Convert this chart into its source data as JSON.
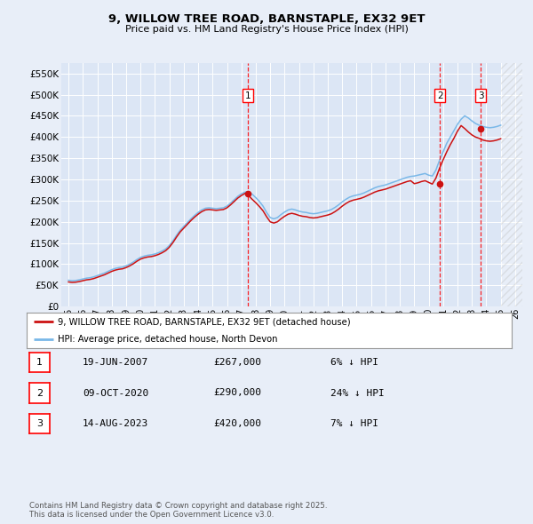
{
  "title": "9, WILLOW TREE ROAD, BARNSTAPLE, EX32 9ET",
  "subtitle": "Price paid vs. HM Land Registry's House Price Index (HPI)",
  "background_color": "#e8eef8",
  "plot_bg_color": "#dce6f5",
  "hpi_color": "#7ab8e8",
  "price_color": "#cc1111",
  "ylim": [
    0,
    575000
  ],
  "yticks": [
    0,
    50000,
    100000,
    150000,
    200000,
    250000,
    300000,
    350000,
    400000,
    450000,
    500000,
    550000
  ],
  "xlim_start": 1994.5,
  "xlim_end": 2026.5,
  "purchase_dates": [
    2007.47,
    2020.77,
    2023.62
  ],
  "purchase_prices": [
    267000,
    290000,
    420000
  ],
  "purchase_labels": [
    "1",
    "2",
    "3"
  ],
  "legend_label_price": "9, WILLOW TREE ROAD, BARNSTAPLE, EX32 9ET (detached house)",
  "legend_label_hpi": "HPI: Average price, detached house, North Devon",
  "table_entries": [
    {
      "label": "1",
      "date": "19-JUN-2007",
      "price": "£267,000",
      "info": "6% ↓ HPI"
    },
    {
      "label": "2",
      "date": "09-OCT-2020",
      "price": "£290,000",
      "info": "24% ↓ HPI"
    },
    {
      "label": "3",
      "date": "14-AUG-2023",
      "price": "£420,000",
      "info": "7% ↓ HPI"
    }
  ],
  "footer": "Contains HM Land Registry data © Crown copyright and database right 2025.\nThis data is licensed under the Open Government Licence v3.0.",
  "hpi_data": {
    "years": [
      1995.0,
      1995.25,
      1995.5,
      1995.75,
      1996.0,
      1996.25,
      1996.5,
      1996.75,
      1997.0,
      1997.25,
      1997.5,
      1997.75,
      1998.0,
      1998.25,
      1998.5,
      1998.75,
      1999.0,
      1999.25,
      1999.5,
      1999.75,
      2000.0,
      2000.25,
      2000.5,
      2000.75,
      2001.0,
      2001.25,
      2001.5,
      2001.75,
      2002.0,
      2002.25,
      2002.5,
      2002.75,
      2003.0,
      2003.25,
      2003.5,
      2003.75,
      2004.0,
      2004.25,
      2004.5,
      2004.75,
      2005.0,
      2005.25,
      2005.5,
      2005.75,
      2006.0,
      2006.25,
      2006.5,
      2006.75,
      2007.0,
      2007.25,
      2007.5,
      2007.75,
      2008.0,
      2008.25,
      2008.5,
      2008.75,
      2009.0,
      2009.25,
      2009.5,
      2009.75,
      2010.0,
      2010.25,
      2010.5,
      2010.75,
      2011.0,
      2011.25,
      2011.5,
      2011.75,
      2012.0,
      2012.25,
      2012.5,
      2012.75,
      2013.0,
      2013.25,
      2013.5,
      2013.75,
      2014.0,
      2014.25,
      2014.5,
      2014.75,
      2015.0,
      2015.25,
      2015.5,
      2015.75,
      2016.0,
      2016.25,
      2016.5,
      2016.75,
      2017.0,
      2017.25,
      2017.5,
      2017.75,
      2018.0,
      2018.25,
      2018.5,
      2018.75,
      2019.0,
      2019.25,
      2019.5,
      2019.75,
      2020.0,
      2020.25,
      2020.5,
      2020.75,
      2021.0,
      2021.25,
      2021.5,
      2021.75,
      2022.0,
      2022.25,
      2022.5,
      2022.75,
      2023.0,
      2023.25,
      2023.5,
      2023.75,
      2024.0,
      2024.25,
      2024.5,
      2024.75,
      2025.0
    ],
    "values": [
      62000,
      61000,
      61500,
      63000,
      65000,
      67000,
      68000,
      70000,
      73000,
      76000,
      79000,
      83000,
      87000,
      90000,
      92000,
      93000,
      96000,
      100000,
      105000,
      111000,
      116000,
      119000,
      121000,
      122000,
      124000,
      127000,
      131000,
      136000,
      144000,
      155000,
      168000,
      180000,
      189000,
      198000,
      207000,
      215000,
      222000,
      228000,
      232000,
      233000,
      232000,
      231000,
      232000,
      233000,
      237000,
      244000,
      252000,
      260000,
      266000,
      270000,
      271000,
      265000,
      257000,
      248000,
      237000,
      222000,
      210000,
      207000,
      210000,
      217000,
      223000,
      228000,
      230000,
      228000,
      225000,
      223000,
      222000,
      220000,
      219000,
      220000,
      222000,
      224000,
      226000,
      229000,
      234000,
      240000,
      247000,
      253000,
      258000,
      261000,
      263000,
      265000,
      268000,
      272000,
      276000,
      280000,
      283000,
      285000,
      287000,
      290000,
      293000,
      296000,
      299000,
      302000,
      305000,
      307000,
      308000,
      310000,
      312000,
      314000,
      310000,
      308000,
      322000,
      345000,
      365000,
      385000,
      400000,
      415000,
      430000,
      442000,
      450000,
      445000,
      438000,
      432000,
      428000,
      425000,
      423000,
      422000,
      423000,
      425000,
      428000
    ]
  },
  "price_data": {
    "years": [
      1995.0,
      1995.25,
      1995.5,
      1995.75,
      1996.0,
      1996.25,
      1996.5,
      1996.75,
      1997.0,
      1997.25,
      1997.5,
      1997.75,
      1998.0,
      1998.25,
      1998.5,
      1998.75,
      1999.0,
      1999.25,
      1999.5,
      1999.75,
      2000.0,
      2000.25,
      2000.5,
      2000.75,
      2001.0,
      2001.25,
      2001.5,
      2001.75,
      2002.0,
      2002.25,
      2002.5,
      2002.75,
      2003.0,
      2003.25,
      2003.5,
      2003.75,
      2004.0,
      2004.25,
      2004.5,
      2004.75,
      2005.0,
      2005.25,
      2005.5,
      2005.75,
      2006.0,
      2006.25,
      2006.5,
      2006.75,
      2007.0,
      2007.25,
      2007.5,
      2007.75,
      2008.0,
      2008.25,
      2008.5,
      2008.75,
      2009.0,
      2009.25,
      2009.5,
      2009.75,
      2010.0,
      2010.25,
      2010.5,
      2010.75,
      2011.0,
      2011.25,
      2011.5,
      2011.75,
      2012.0,
      2012.25,
      2012.5,
      2012.75,
      2013.0,
      2013.25,
      2013.5,
      2013.75,
      2014.0,
      2014.25,
      2014.5,
      2014.75,
      2015.0,
      2015.25,
      2015.5,
      2015.75,
      2016.0,
      2016.25,
      2016.5,
      2016.75,
      2017.0,
      2017.25,
      2017.5,
      2017.75,
      2018.0,
      2018.25,
      2018.5,
      2018.75,
      2019.0,
      2019.25,
      2019.5,
      2019.75,
      2020.0,
      2020.25,
      2020.5,
      2020.75,
      2021.0,
      2021.25,
      2021.5,
      2021.75,
      2022.0,
      2022.25,
      2022.5,
      2022.75,
      2023.0,
      2023.25,
      2023.5,
      2023.75,
      2024.0,
      2024.25,
      2024.5,
      2024.75,
      2025.0
    ],
    "values": [
      58000,
      57000,
      57500,
      59000,
      61000,
      63000,
      64000,
      66000,
      69000,
      72000,
      75000,
      79000,
      83000,
      86000,
      88000,
      89000,
      92000,
      96000,
      101000,
      107000,
      112000,
      115000,
      117000,
      118000,
      120000,
      123000,
      127000,
      132000,
      140000,
      151000,
      164000,
      176000,
      185000,
      194000,
      203000,
      211000,
      218000,
      224000,
      228000,
      229000,
      228000,
      227000,
      228000,
      229000,
      233000,
      240000,
      248000,
      256000,
      262000,
      267000,
      262000,
      253000,
      245000,
      236000,
      226000,
      212000,
      200000,
      197000,
      200000,
      207000,
      213000,
      218000,
      220000,
      218000,
      215000,
      213000,
      212000,
      210000,
      209000,
      210000,
      212000,
      214000,
      216000,
      219000,
      224000,
      230000,
      237000,
      243000,
      248000,
      251000,
      253000,
      255000,
      258000,
      262000,
      266000,
      270000,
      273000,
      275000,
      277000,
      280000,
      283000,
      286000,
      289000,
      292000,
      295000,
      297000,
      290000,
      292000,
      295000,
      297000,
      293000,
      289000,
      303000,
      326000,
      346000,
      365000,
      382000,
      397000,
      414000,
      427000,
      420000,
      412000,
      405000,
      400000,
      397000,
      393000,
      391000,
      390000,
      391000,
      393000,
      396000
    ]
  }
}
